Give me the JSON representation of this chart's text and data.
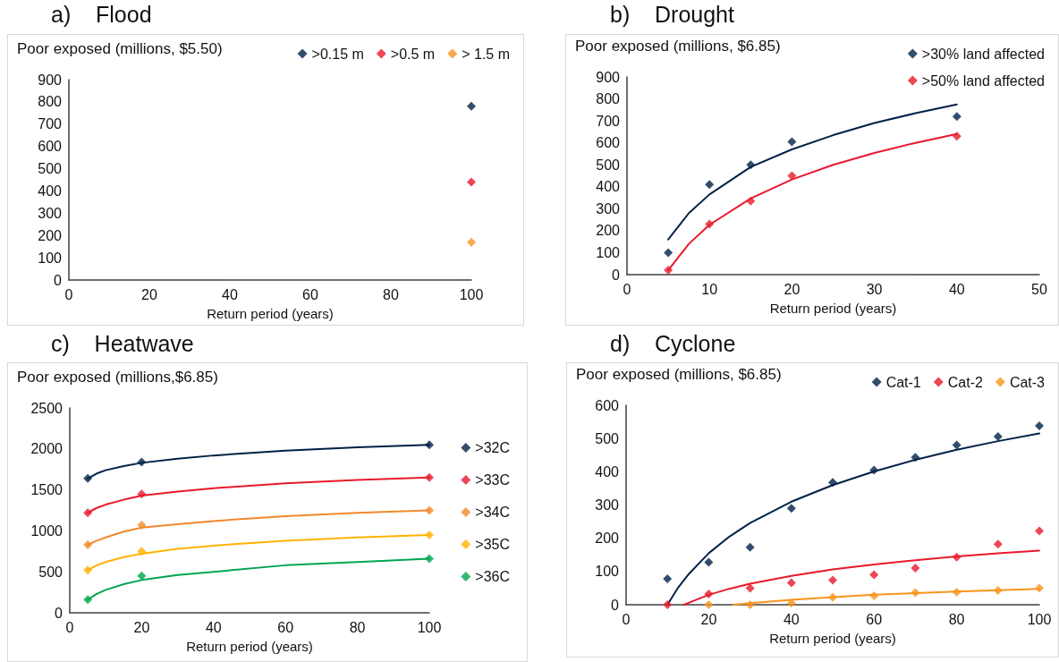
{
  "chart_data": [
    {
      "type": "scatter",
      "title": "a)    Flood",
      "ylabel": "Poor exposed (millions, $5.50)",
      "xlabel": "Return period (years)",
      "xlim": [
        0,
        100
      ],
      "xticks": [
        0,
        20,
        40,
        60,
        80,
        100
      ],
      "ylim": [
        0,
        900
      ],
      "yticks": [
        0,
        100,
        200,
        300,
        400,
        500,
        600,
        700,
        800,
        900
      ],
      "grid": false,
      "legend": "top right",
      "marker": "diamond",
      "series": [
        {
          "name": ">0.15 m",
          "color": "#002147",
          "x": [
            100
          ],
          "values": [
            780
          ]
        },
        {
          "name": ">0.5 m",
          "color": "#e8192c",
          "x": [
            100
          ],
          "values": [
            440
          ]
        },
        {
          "name": "> 1.5 m",
          "color": "#f7941d",
          "x": [
            100
          ],
          "values": [
            170
          ]
        }
      ]
    },
    {
      "type": "scatter",
      "title": "b)    Drought",
      "ylabel": "Poor exposed (millions, $6.85)",
      "xlabel": "Return period (years)",
      "xlim": [
        0,
        50
      ],
      "xticks": [
        0,
        10,
        20,
        30,
        40,
        50
      ],
      "ylim": [
        0,
        900
      ],
      "yticks": [
        0,
        100,
        200,
        300,
        400,
        500,
        600,
        700,
        800,
        900
      ],
      "grid": false,
      "legend": "top right",
      "marker": "diamond",
      "series": [
        {
          "name": ">30% land affected",
          "color": "#002147",
          "x": [
            5,
            10,
            15,
            20,
            40
          ],
          "values": [
            100,
            410,
            500,
            605,
            720
          ]
        },
        {
          "name": ">50% land affected",
          "color": "#e8192c",
          "x": [
            5,
            10,
            15,
            20,
            40
          ],
          "values": [
            20,
            230,
            335,
            450,
            630
          ]
        },
        {
          "type": "line",
          "color": "#002147",
          "marker": "none",
          "x": [
            5,
            7.5,
            10,
            15,
            20,
            25,
            30,
            35,
            40
          ],
          "values": [
            160,
            280,
            365,
            490,
            570,
            635,
            690,
            735,
            775
          ]
        },
        {
          "type": "line",
          "color": "#e8192c",
          "marker": "none",
          "x": [
            5,
            7.5,
            10,
            15,
            20,
            25,
            30,
            35,
            40
          ],
          "values": [
            20,
            140,
            227,
            347,
            433,
            500,
            554,
            600,
            640
          ]
        }
      ]
    },
    {
      "type": "scatter",
      "title": "c)    Heatwave",
      "ylabel": "Poor exposed (millions,$6.85)",
      "xlabel": "Return period (years)",
      "xlim": [
        0,
        100
      ],
      "xticks": [
        0,
        20,
        40,
        60,
        80,
        100
      ],
      "ylim": [
        0,
        2500
      ],
      "yticks": [
        0,
        500,
        1000,
        1500,
        2000,
        2500
      ],
      "grid": false,
      "legend": "right",
      "marker": "diamond",
      "series": [
        {
          "name": ">32C",
          "color": "#002147",
          "x": [
            5,
            20,
            100
          ],
          "values": [
            1640,
            1840,
            2050
          ]
        },
        {
          "name": ">33C",
          "color": "#e8192c",
          "x": [
            5,
            20,
            100
          ],
          "values": [
            1220,
            1450,
            1650
          ]
        },
        {
          "name": ">34C",
          "color": "#f0892c",
          "x": [
            5,
            20,
            100
          ],
          "values": [
            830,
            1070,
            1250
          ]
        },
        {
          "name": ">35C",
          "color": "#ffb300",
          "x": [
            5,
            20,
            100
          ],
          "values": [
            520,
            750,
            950
          ]
        },
        {
          "name": ">36C",
          "color": "#00a651",
          "x": [
            5,
            20,
            100
          ],
          "values": [
            160,
            450,
            660
          ]
        },
        {
          "type": "line",
          "color": "#002147",
          "marker": "none",
          "x": [
            5,
            7.5,
            10,
            15,
            20,
            30,
            40,
            60,
            80,
            100
          ],
          "values": [
            1640,
            1700,
            1740,
            1790,
            1830,
            1880,
            1920,
            1980,
            2020,
            2050
          ]
        },
        {
          "type": "line",
          "color": "#e8192c",
          "marker": "none",
          "x": [
            5,
            7.5,
            10,
            15,
            20,
            30,
            40,
            60,
            80,
            100
          ],
          "values": [
            1220,
            1280,
            1320,
            1380,
            1430,
            1480,
            1520,
            1580,
            1620,
            1650
          ]
        },
        {
          "type": "line",
          "color": "#f0892c",
          "marker": "none",
          "x": [
            5,
            7.5,
            10,
            15,
            20,
            30,
            40,
            60,
            80,
            100
          ],
          "values": [
            830,
            880,
            920,
            990,
            1040,
            1080,
            1120,
            1180,
            1220,
            1250
          ]
        },
        {
          "type": "line",
          "color": "#ffb300",
          "marker": "none",
          "x": [
            5,
            7.5,
            10,
            15,
            20,
            30,
            40,
            60,
            80,
            100
          ],
          "values": [
            520,
            580,
            620,
            680,
            720,
            780,
            820,
            880,
            920,
            950
          ]
        },
        {
          "type": "line",
          "color": "#00a651",
          "marker": "none",
          "x": [
            5,
            7.5,
            10,
            15,
            20,
            30,
            40,
            60,
            80,
            100
          ],
          "values": [
            160,
            230,
            280,
            350,
            400,
            460,
            500,
            580,
            620,
            660
          ]
        }
      ]
    },
    {
      "type": "scatter",
      "title": "d)    Cyclone",
      "ylabel": "Poor exposed (millions, $6.85)",
      "xlabel": "Return period (years)",
      "xlim": [
        0,
        100
      ],
      "xticks": [
        0,
        20,
        40,
        60,
        80,
        100
      ],
      "ylim": [
        0,
        600
      ],
      "yticks": [
        0,
        100,
        200,
        300,
        400,
        500,
        600
      ],
      "grid": false,
      "legend": "top right",
      "marker": "diamond",
      "series": [
        {
          "name": "Cat-1",
          "color": "#002147",
          "x": [
            10,
            20,
            30,
            40,
            50,
            60,
            70,
            80,
            90,
            100
          ],
          "values": [
            78,
            128,
            173,
            290,
            368,
            405,
            443,
            480,
            506,
            538
          ]
        },
        {
          "name": "Cat-2",
          "color": "#e8192c",
          "x": [
            10,
            20,
            30,
            40,
            50,
            60,
            70,
            80,
            90,
            100
          ],
          "values": [
            0,
            32,
            50,
            66,
            74,
            90,
            110,
            143,
            182,
            222
          ]
        },
        {
          "name": "Cat-3",
          "color": "#f7941d",
          "x": [
            20,
            30,
            40,
            50,
            60,
            70,
            80,
            90,
            100
          ],
          "values": [
            0,
            0,
            5,
            22,
            27,
            36,
            38,
            43,
            50
          ]
        },
        {
          "type": "line",
          "color": "#002147",
          "marker": "none",
          "x": [
            10,
            12.5,
            15,
            20,
            25,
            30,
            40,
            50,
            60,
            70,
            80,
            90,
            100
          ],
          "values": [
            0,
            50,
            90,
            155,
            205,
            246,
            310,
            360,
            401,
            436,
            466,
            492,
            515
          ]
        },
        {
          "type": "line",
          "color": "#e8192c",
          "marker": "none",
          "x": [
            14,
            17,
            20,
            25,
            30,
            40,
            50,
            60,
            70,
            80,
            90,
            100
          ],
          "values": [
            0,
            15,
            30,
            48,
            63,
            87,
            106,
            121,
            134,
            145,
            155,
            163
          ]
        },
        {
          "type": "line",
          "color": "#f7941d",
          "marker": "none",
          "x": [
            26,
            30,
            40,
            50,
            60,
            70,
            80,
            90,
            100
          ],
          "values": [
            0,
            5,
            15,
            23,
            30,
            35,
            40,
            44,
            48
          ]
        }
      ]
    }
  ]
}
